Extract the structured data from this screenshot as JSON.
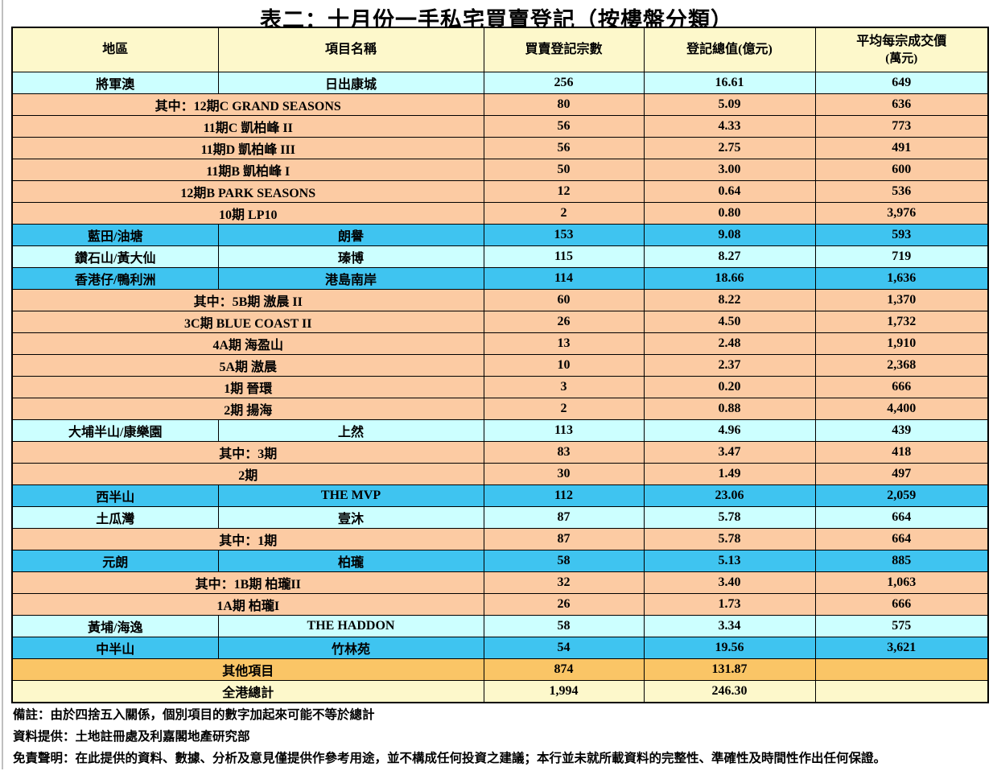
{
  "title": "表二：十月份一手私宅買賣登記（按樓盤分類）",
  "palette": {
    "header": "#FDF8CB",
    "cyan": "#CCFFFF",
    "blue": "#3FC4F0",
    "peach": "#FCCBA3",
    "orange": "#FAC566",
    "yellow": "#FDF8CB"
  },
  "table": {
    "headers": [
      {
        "label": "地區"
      },
      {
        "label": "項目名稱"
      },
      {
        "label": "買賣登記宗數"
      },
      {
        "label": "登記總值(億元)"
      },
      {
        "label": "平均每宗成交價",
        "sub": "(萬元)"
      }
    ],
    "rows": [
      {
        "kind": "district",
        "style": "cyan",
        "district": "將軍澳",
        "project": "日出康城",
        "count": "256",
        "value": "16.61",
        "avg": "649"
      },
      {
        "kind": "sub",
        "style": "peach",
        "project": "其中：12期C GRAND SEASONS",
        "count": "80",
        "value": "5.09",
        "avg": "636"
      },
      {
        "kind": "sub",
        "style": "peach",
        "project": "11期C 凱柏峰 II",
        "count": "56",
        "value": "4.33",
        "avg": "773"
      },
      {
        "kind": "sub",
        "style": "peach",
        "project": "11期D 凱柏峰 III",
        "count": "56",
        "value": "2.75",
        "avg": "491"
      },
      {
        "kind": "sub",
        "style": "peach",
        "project": "11期B 凱柏峰 I",
        "count": "50",
        "value": "3.00",
        "avg": "600"
      },
      {
        "kind": "sub",
        "style": "peach",
        "project": "12期B PARK SEASONS",
        "count": "12",
        "value": "0.64",
        "avg": "536"
      },
      {
        "kind": "sub",
        "style": "peach",
        "project": "10期 LP10",
        "count": "2",
        "value": "0.80",
        "avg": "3,976"
      },
      {
        "kind": "district",
        "style": "blue",
        "district": "藍田/油塘",
        "project": "朗譽",
        "count": "153",
        "value": "9.08",
        "avg": "593"
      },
      {
        "kind": "district",
        "style": "cyan",
        "district": "鑽石山/黃大仙",
        "project": "瑧博",
        "count": "115",
        "value": "8.27",
        "avg": "719"
      },
      {
        "kind": "district",
        "style": "blue",
        "district": "香港仔/鴨利洲",
        "project": "港島南岸",
        "count": "114",
        "value": "18.66",
        "avg": "1,636"
      },
      {
        "kind": "sub",
        "style": "peach",
        "project": "其中：5B期 滶晨 II",
        "count": "60",
        "value": "8.22",
        "avg": "1,370"
      },
      {
        "kind": "sub",
        "style": "peach",
        "project": "3C期 BLUE COAST II",
        "count": "26",
        "value": "4.50",
        "avg": "1,732"
      },
      {
        "kind": "sub",
        "style": "peach",
        "project": "4A期 海盈山",
        "count": "13",
        "value": "2.48",
        "avg": "1,910"
      },
      {
        "kind": "sub",
        "style": "peach",
        "project": "5A期 滶晨",
        "count": "10",
        "value": "2.37",
        "avg": "2,368"
      },
      {
        "kind": "sub",
        "style": "peach",
        "project": "1期 晉環",
        "count": "3",
        "value": "0.20",
        "avg": "666"
      },
      {
        "kind": "sub",
        "style": "peach",
        "project": "2期 揚海",
        "count": "2",
        "value": "0.88",
        "avg": "4,400"
      },
      {
        "kind": "district",
        "style": "cyan",
        "district": "大埔半山/康樂園",
        "project": "上然",
        "count": "113",
        "value": "4.96",
        "avg": "439"
      },
      {
        "kind": "sub",
        "style": "peach",
        "project": "其中：3期",
        "count": "83",
        "value": "3.47",
        "avg": "418"
      },
      {
        "kind": "sub",
        "style": "peach",
        "project": "2期",
        "count": "30",
        "value": "1.49",
        "avg": "497"
      },
      {
        "kind": "district",
        "style": "blue",
        "district": "西半山",
        "project": "THE MVP",
        "count": "112",
        "value": "23.06",
        "avg": "2,059"
      },
      {
        "kind": "district",
        "style": "cyan",
        "district": "土瓜灣",
        "project": "壹沐",
        "count": "87",
        "value": "5.78",
        "avg": "664"
      },
      {
        "kind": "sub",
        "style": "peach",
        "project": "其中：1期",
        "count": "87",
        "value": "5.78",
        "avg": "664"
      },
      {
        "kind": "district",
        "style": "blue",
        "district": "元朗",
        "project": "柏瓏",
        "count": "58",
        "value": "5.13",
        "avg": "885"
      },
      {
        "kind": "sub",
        "style": "peach",
        "project": "其中：1B期 柏瓏II",
        "count": "32",
        "value": "3.40",
        "avg": "1,063"
      },
      {
        "kind": "sub",
        "style": "peach",
        "project": "1A期 柏瓏I",
        "count": "26",
        "value": "1.73",
        "avg": "666"
      },
      {
        "kind": "district",
        "style": "cyan",
        "district": "黃埔/海逸",
        "project": "THE HADDON",
        "count": "58",
        "value": "3.34",
        "avg": "575"
      },
      {
        "kind": "district",
        "style": "blue",
        "district": "中半山",
        "project": "竹林苑",
        "count": "54",
        "value": "19.56",
        "avg": "3,621"
      },
      {
        "kind": "total",
        "style": "orange",
        "label": "其他項目",
        "count": "874",
        "value": "131.87",
        "avg": ""
      },
      {
        "kind": "total",
        "style": "yellow",
        "label": "全港總計",
        "count": "1,994",
        "value": "246.30",
        "avg": ""
      }
    ]
  },
  "notes": [
    "備註：由於四捨五入關係，個別項目的數字加起來可能不等於總計",
    "資料提供：土地註冊處及利嘉閣地產研究部",
    "免責聲明：在此提供的資料、數據、分析及意見僅提供作參考用途，並不構成任何投資之建議；本行並未就所載資料的完整性、準確性及時間性作出任何保證。"
  ]
}
